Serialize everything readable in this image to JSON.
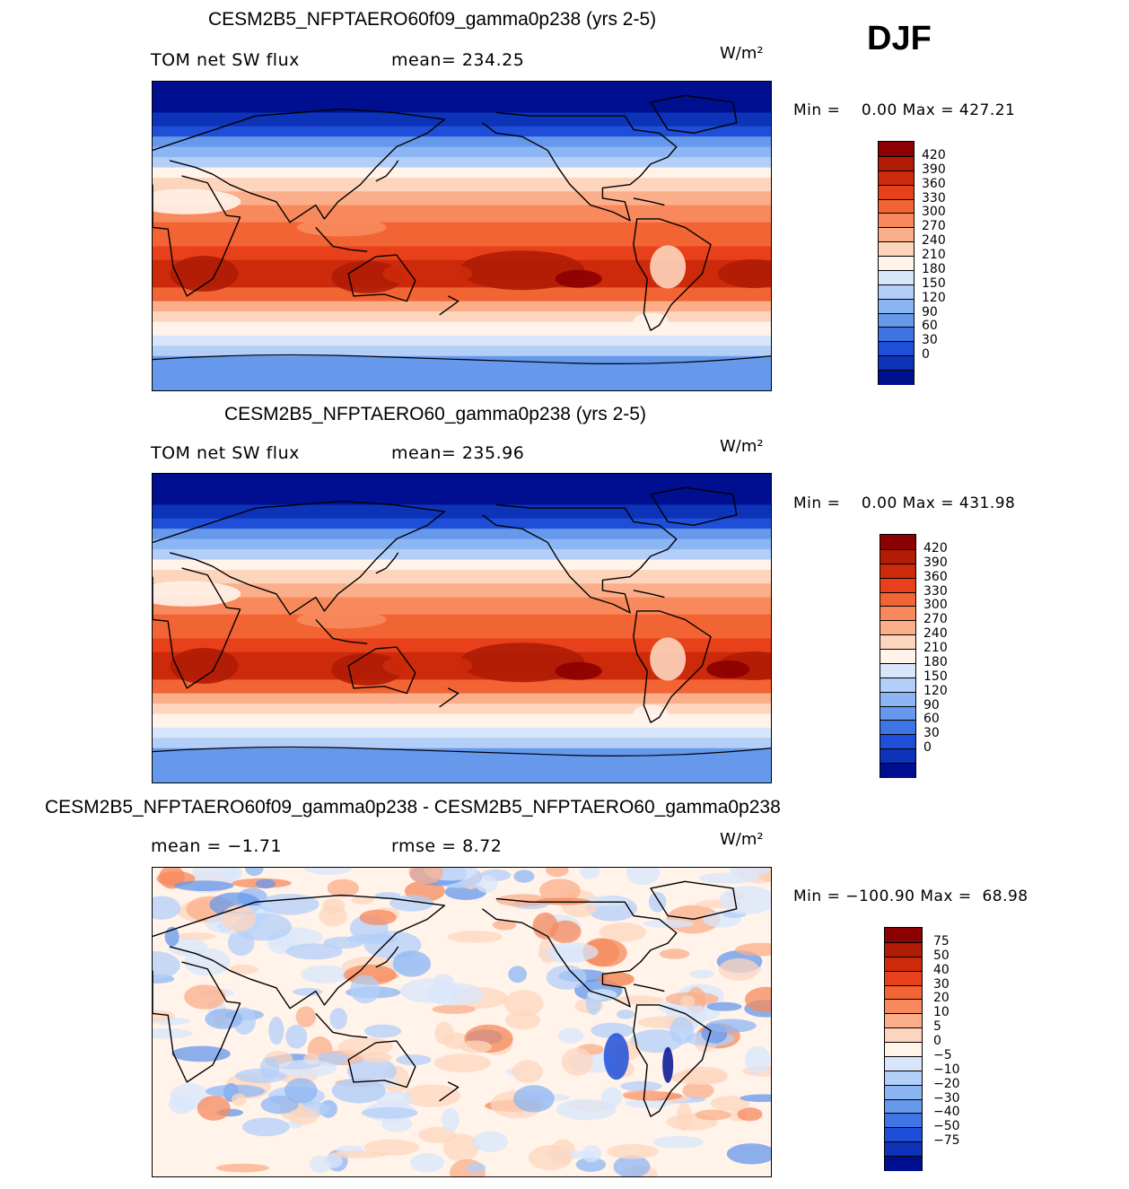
{
  "season": "DJF",
  "panels": [
    {
      "title": "CESM2B5_NFPTAERO60f09_gamma0p238 (yrs 2-5)",
      "left_label": "TOM net SW flux",
      "right_label": "mean= 234.25",
      "units": "W/m²",
      "minmax": "Min =    0.00 Max = 427.21"
    },
    {
      "title": "CESM2B5_NFPTAERO60_gamma0p238 (yrs 2-5)",
      "left_label": "TOM net SW flux",
      "right_label": "mean= 235.96",
      "units": "W/m²",
      "minmax": "Min =    0.00 Max = 431.98"
    },
    {
      "title": "CESM2B5_NFPTAERO60f09_gamma0p238 - CESM2B5_NFPTAERO60_gamma0p238",
      "left_label": "mean =   −1.71",
      "right_label": "rmse =    8.72",
      "units": "W/m²",
      "minmax": "Min = −100.90 Max =  68.98"
    }
  ],
  "chart_data": [
    {
      "type": "heatmap",
      "title": "CESM2B5_NFPTAERO60f09_gamma0p238 (yrs 2-5)",
      "variable": "TOM net SW flux",
      "mean": 234.25,
      "min": 0.0,
      "max": 427.21,
      "units": "W/m2",
      "season": "DJF",
      "colorbar_levels": [
        "420",
        "390",
        "360",
        "330",
        "300",
        "270",
        "240",
        "210",
        "180",
        "150",
        "120",
        "90",
        "60",
        "30",
        "0"
      ],
      "colorbar_colors": [
        "#8b0000",
        "#b01c05",
        "#cc2a0a",
        "#e8401a",
        "#f26433",
        "#f7895c",
        "#fbae8a",
        "#fdd5bd",
        "#fff3ea",
        "#d8e6fb",
        "#b3cff8",
        "#8cb5f3",
        "#6698ec",
        "#3f74e4",
        "#1f4fd8",
        "#0c33b8",
        "#000f90"
      ],
      "zonal_profile_lat": [
        90,
        75,
        60,
        45,
        30,
        15,
        0,
        -15,
        -30,
        -45,
        -60,
        -75,
        -90
      ],
      "zonal_profile_value": [
        0,
        10,
        60,
        150,
        250,
        310,
        330,
        380,
        360,
        300,
        220,
        230,
        140
      ]
    },
    {
      "type": "heatmap",
      "title": "CESM2B5_NFPTAERO60_gamma0p238 (yrs 2-5)",
      "variable": "TOM net SW flux",
      "mean": 235.96,
      "min": 0.0,
      "max": 431.98,
      "units": "W/m2",
      "season": "DJF",
      "colorbar_levels": [
        "420",
        "390",
        "360",
        "330",
        "300",
        "270",
        "240",
        "210",
        "180",
        "150",
        "120",
        "90",
        "60",
        "30",
        "0"
      ],
      "colorbar_colors": [
        "#8b0000",
        "#b01c05",
        "#cc2a0a",
        "#e8401a",
        "#f26433",
        "#f7895c",
        "#fbae8a",
        "#fdd5bd",
        "#fff3ea",
        "#d8e6fb",
        "#b3cff8",
        "#8cb5f3",
        "#6698ec",
        "#3f74e4",
        "#1f4fd8",
        "#0c33b8",
        "#000f90"
      ],
      "zonal_profile_lat": [
        90,
        75,
        60,
        45,
        30,
        15,
        0,
        -15,
        -30,
        -45,
        -60,
        -75,
        -90
      ],
      "zonal_profile_value": [
        0,
        10,
        60,
        150,
        250,
        310,
        330,
        385,
        365,
        300,
        220,
        230,
        140
      ]
    },
    {
      "type": "heatmap",
      "title": "CESM2B5_NFPTAERO60f09_gamma0p238 - CESM2B5_NFPTAERO60_gamma0p238",
      "variable": "difference",
      "mean": -1.71,
      "rmse": 8.72,
      "min": -100.9,
      "max": 68.98,
      "units": "W/m2",
      "season": "DJF",
      "colorbar_levels": [
        "75",
        "50",
        "40",
        "30",
        "20",
        "10",
        "5",
        "0",
        "−5",
        "−10",
        "−20",
        "−30",
        "−40",
        "−50",
        "−75"
      ],
      "colorbar_colors": [
        "#8b0000",
        "#b01c05",
        "#cc2a0a",
        "#e8401a",
        "#f26433",
        "#f7895c",
        "#fbae8a",
        "#fdd5bd",
        "#fff3ea",
        "#d8e6fb",
        "#b3cff8",
        "#8cb5f3",
        "#6698ec",
        "#3f74e4",
        "#1f4fd8",
        "#0c33b8",
        "#000f90"
      ]
    }
  ]
}
